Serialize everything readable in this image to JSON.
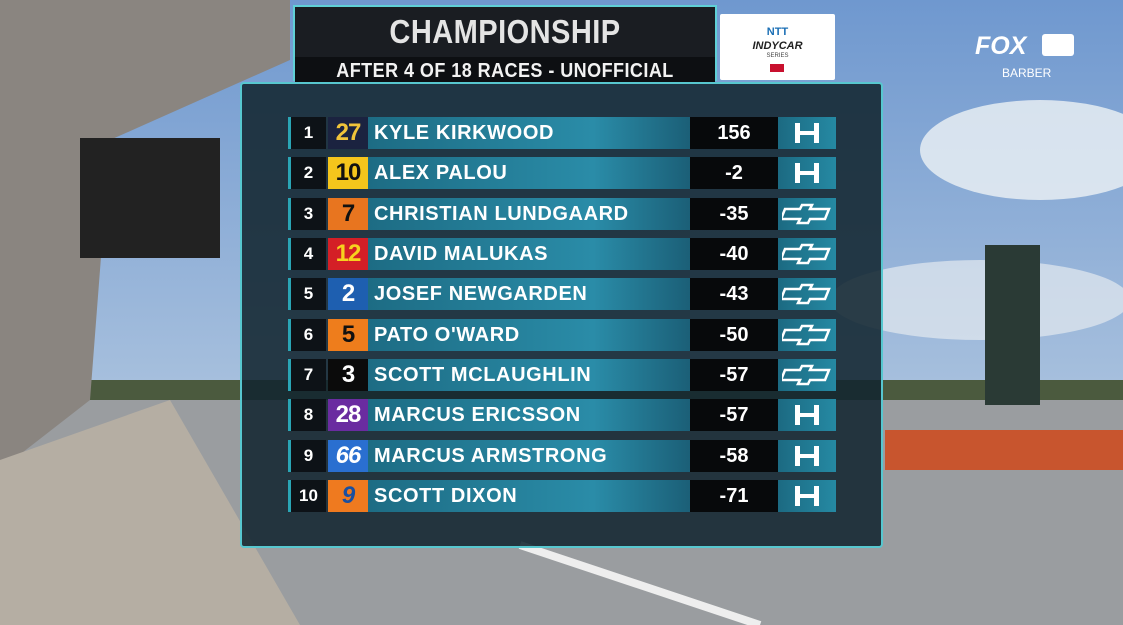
{
  "header": {
    "title": "CHAMPIONSHIP STANDINGS",
    "subtitle": "AFTER 4 OF 18 RACES - UNOFFICIAL"
  },
  "logo": {
    "brand": "NTT",
    "series": "INDYCAR",
    "tagline": "SERIES"
  },
  "network": {
    "name": "FOX",
    "venue": "BARBER"
  },
  "table": {
    "rows": [
      {
        "position": 1,
        "car": "27",
        "driver": "KYLE KIRKWOOD",
        "points": 156
      },
      {
        "position": 2,
        "car": "10",
        "driver": "ALEX PALOU",
        "points": -2
      },
      {
        "position": 3,
        "car": "7",
        "driver": "CHRISTIAN LUNDGAARD",
        "points": -35
      },
      {
        "position": 4,
        "car": "12",
        "driver": "DAVID MALUKAS",
        "points": -40
      },
      {
        "position": 5,
        "car": "2",
        "driver": "JOSEF NEWGARDEN",
        "points": -43
      },
      {
        "position": 6,
        "car": "5",
        "driver": "PATO O'WARD",
        "points": -50
      },
      {
        "position": 7,
        "car": "3",
        "driver": "SCOTT MCLAUGHLIN",
        "points": -57
      },
      {
        "position": 8,
        "car": "28",
        "driver": "MARCUS ERICSSON",
        "points": -57
      },
      {
        "position": 9,
        "car": "66",
        "driver": "MARCUS ARMSTRONG",
        "points": -58
      },
      {
        "position": 10,
        "car": "9",
        "driver": "SCOTT DIXON",
        "points": -71
      }
    ]
  }
}
